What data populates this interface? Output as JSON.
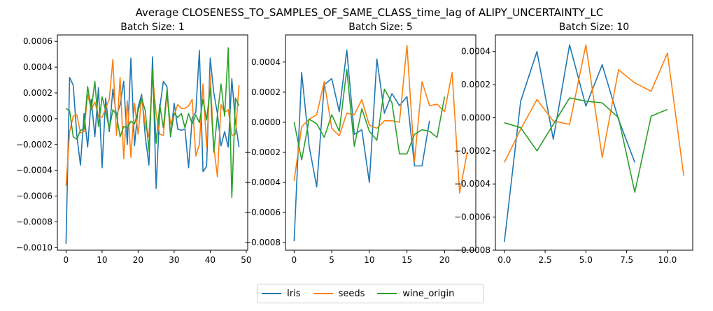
{
  "chart_data": {
    "title": "Average CLOSENESS_TO_SAMPLES_OF_SAME_CLASS_time_lag of ALIPY_UNCERTAINTY_LC",
    "type": "line",
    "legend_position": "bottom-center",
    "legend": [
      {
        "name": "Iris",
        "color": "#1f77b4"
      },
      {
        "name": "seeds",
        "color": "#ff7f0e"
      },
      {
        "name": "wine_origin",
        "color": "#2ca02c"
      }
    ],
    "subplots": [
      {
        "title": "Batch Size: 1",
        "xlim": [
          -2.4,
          50.4
        ],
        "ylim": [
          -0.00102,
          0.00065
        ],
        "xticks": [
          0,
          10,
          20,
          30,
          40,
          50
        ],
        "xtick_labels": [
          "0",
          "10",
          "20",
          "30",
          "40",
          "50"
        ],
        "yticks": [
          -0.001,
          -0.0008,
          -0.0006,
          -0.0004,
          -0.0002,
          0,
          0.0002,
          0.0004,
          0.0006
        ],
        "ytick_labels": [
          "−0.0010",
          "−0.0008",
          "−0.0006",
          "−0.0004",
          "−0.0002",
          "0.0000",
          "0.0002",
          "0.0004",
          "0.0006"
        ],
        "series": [
          {
            "name": "Iris",
            "color": "#1f77b4",
            "values": [
              -0.00097,
              0.00032,
              0.00026,
              -0.00013,
              -0.00036,
              4e-05,
              -0.00022,
              0.00015,
              -0.00014,
              0.00024,
              -0.00038,
              0.00016,
              -0.0001,
              0.00023,
              2e-05,
              0.00011,
              0.00029,
              -0.0002,
              0.00047,
              -0.00021,
              9e-05,
              0.00019,
              -0.00014,
              -0.00036,
              0.00048,
              -0.00054,
              8e-05,
              0.00029,
              0.00025,
              -0.00014,
              0.00012,
              -8e-05,
              -9e-05,
              -8e-05,
              -0.00038,
              1e-05,
              5e-05,
              0.00053,
              -0.00041,
              -0.00037,
              0.00047,
              0.0002,
              4e-05,
              -0.00021,
              -0.0001,
              -0.00022,
              0.00031,
              -3e-05,
              -0.00022
            ]
          },
          {
            "name": "seeds",
            "color": "#ff7f0e",
            "values": [
              -0.00052,
              -0.0001,
              2e-05,
              3e-05,
              -0.00011,
              -0.0001,
              0.00019,
              7e-05,
              0.00013,
              2e-05,
              1e-05,
              8e-05,
              0.00015,
              0.00046,
              -0.00013,
              0.00032,
              -0.00031,
              0.00014,
              -0.0003,
              0.00012,
              -0.00012,
              0.00017,
              -6e-05,
              -0.00014,
              0.00034,
              4e-05,
              -0.00012,
              -0.00013,
              0.00019,
              -4e-05,
              3e-05,
              0.00011,
              8e-05,
              8e-05,
              0.0001,
              0.00015,
              -0.00029,
              -0.0002,
              0.00027,
              -0.00022,
              0.00034,
              -0.00022,
              -0.00045,
              0.00011,
              5e-05,
              7e-05,
              -0.00013,
              -0.00012,
              0.00026
            ]
          },
          {
            "name": "wine_origin",
            "color": "#2ca02c",
            "values": [
              8e-05,
              6e-05,
              -0.00014,
              -0.00016,
              -9e-05,
              -8e-05,
              0.00025,
              7e-05,
              0.00029,
              -6e-05,
              0.00017,
              6e-05,
              -8e-05,
              7e-05,
              3e-05,
              -0.00014,
              -6e-05,
              -7e-05,
              -2e-05,
              -4e-05,
              6e-05,
              0.00016,
              6e-05,
              -0.00025,
              0.00038,
              -0.00019,
              0.00011,
              -7e-05,
              0.00022,
              -0.00013,
              4e-05,
              1e-05,
              4e-05,
              -7e-05,
              4e-05,
              -4e-05,
              3e-05,
              -3e-05,
              0.00015,
              -1e-05,
              0.00024,
              -0.00026,
              3e-05,
              0.00027,
              2e-05,
              0.00055,
              -0.00061,
              0.00016,
              0.0001
            ]
          }
        ]
      },
      {
        "title": "Batch Size: 5",
        "xlim": [
          -1.15,
          24.15
        ],
        "ylim": [
          -0.00085,
          0.00058
        ],
        "xticks": [
          0,
          5,
          10,
          15,
          20
        ],
        "xtick_labels": [
          "0",
          "5",
          "10",
          "15",
          "20"
        ],
        "yticks": [
          -0.0008,
          -0.0006,
          -0.0004,
          -0.0002,
          0,
          0.0002,
          0.0004
        ],
        "ytick_labels": [
          "−0.0008",
          "−0.0006",
          "−0.0004",
          "−0.0002",
          "0.0000",
          "0.0002",
          "0.0004"
        ],
        "series": [
          {
            "name": "Iris",
            "color": "#1f77b4",
            "values": [
              -0.00079,
              0.00033,
              -0.00016,
              -0.00043,
              0.00025,
              0.00029,
              7e-05,
              0.00048,
              -8e-05,
              -5e-05,
              -0.0004,
              0.00042,
              6e-05,
              0.00019,
              0.00011,
              0.00017,
              -0.00029,
              -0.00029,
              1e-05
            ]
          },
          {
            "name": "seeds",
            "color": "#ff7f0e",
            "values": [
              -0.00039,
              -3e-05,
              2e-05,
              5e-05,
              0.00027,
              -4e-05,
              -9e-05,
              6e-05,
              5e-05,
              0.00015,
              -2e-05,
              -4e-05,
              1e-05,
              1e-05,
              0.0,
              0.00051,
              -0.00026,
              0.00027,
              0.00011,
              0.00012,
              7e-05,
              0.00033,
              -0.00047,
              -0.0002
            ]
          },
          {
            "name": "wine_origin",
            "color": "#2ca02c",
            "values": [
              0.0,
              -0.00025,
              2e-05,
              -1e-05,
              -0.0001,
              5e-05,
              -6e-05,
              0.00035,
              -0.00016,
              9e-05,
              -6e-05,
              -0.00012,
              0.00022,
              0.00013,
              -0.00021,
              -0.00021,
              -8e-05,
              -5e-05,
              -6e-05,
              -0.0001,
              0.00017
            ]
          }
        ]
      },
      {
        "title": "Batch Size: 10",
        "xlim": [
          -0.55,
          11.55
        ],
        "ylim": [
          -0.0008,
          0.0005
        ],
        "xticks": [
          0,
          2.5,
          5,
          7.5,
          10
        ],
        "xtick_labels": [
          "0.0",
          "2.5",
          "5.0",
          "7.5",
          "10.0"
        ],
        "yticks": [
          -0.0008,
          -0.0006,
          -0.0004,
          -0.0002,
          0,
          0.0002,
          0.0004
        ],
        "ytick_labels": [
          "−0.0008",
          "−0.0006",
          "−0.0004",
          "−0.0002",
          "0.0000",
          "0.0002",
          "0.0004"
        ],
        "series": [
          {
            "name": "Iris",
            "color": "#1f77b4",
            "values": [
              -0.00075,
              0.0001,
              0.0004,
              -0.00013,
              0.00044,
              7e-05,
              0.00032,
              -1e-05,
              -0.00027
            ]
          },
          {
            "name": "seeds",
            "color": "#ff7f0e",
            "values": [
              -0.00027,
              -7e-05,
              0.00011,
              -2e-05,
              -4e-05,
              0.00044,
              -0.00024,
              0.00029,
              0.00021,
              0.00016,
              0.00039,
              -0.00035
            ]
          },
          {
            "name": "wine_origin",
            "color": "#2ca02c",
            "values": [
              -3e-05,
              -6e-05,
              -0.0002,
              -4e-05,
              0.00012,
              0.0001,
              9e-05,
              0.0,
              -0.00045,
              1e-05,
              5e-05
            ]
          }
        ]
      }
    ]
  }
}
